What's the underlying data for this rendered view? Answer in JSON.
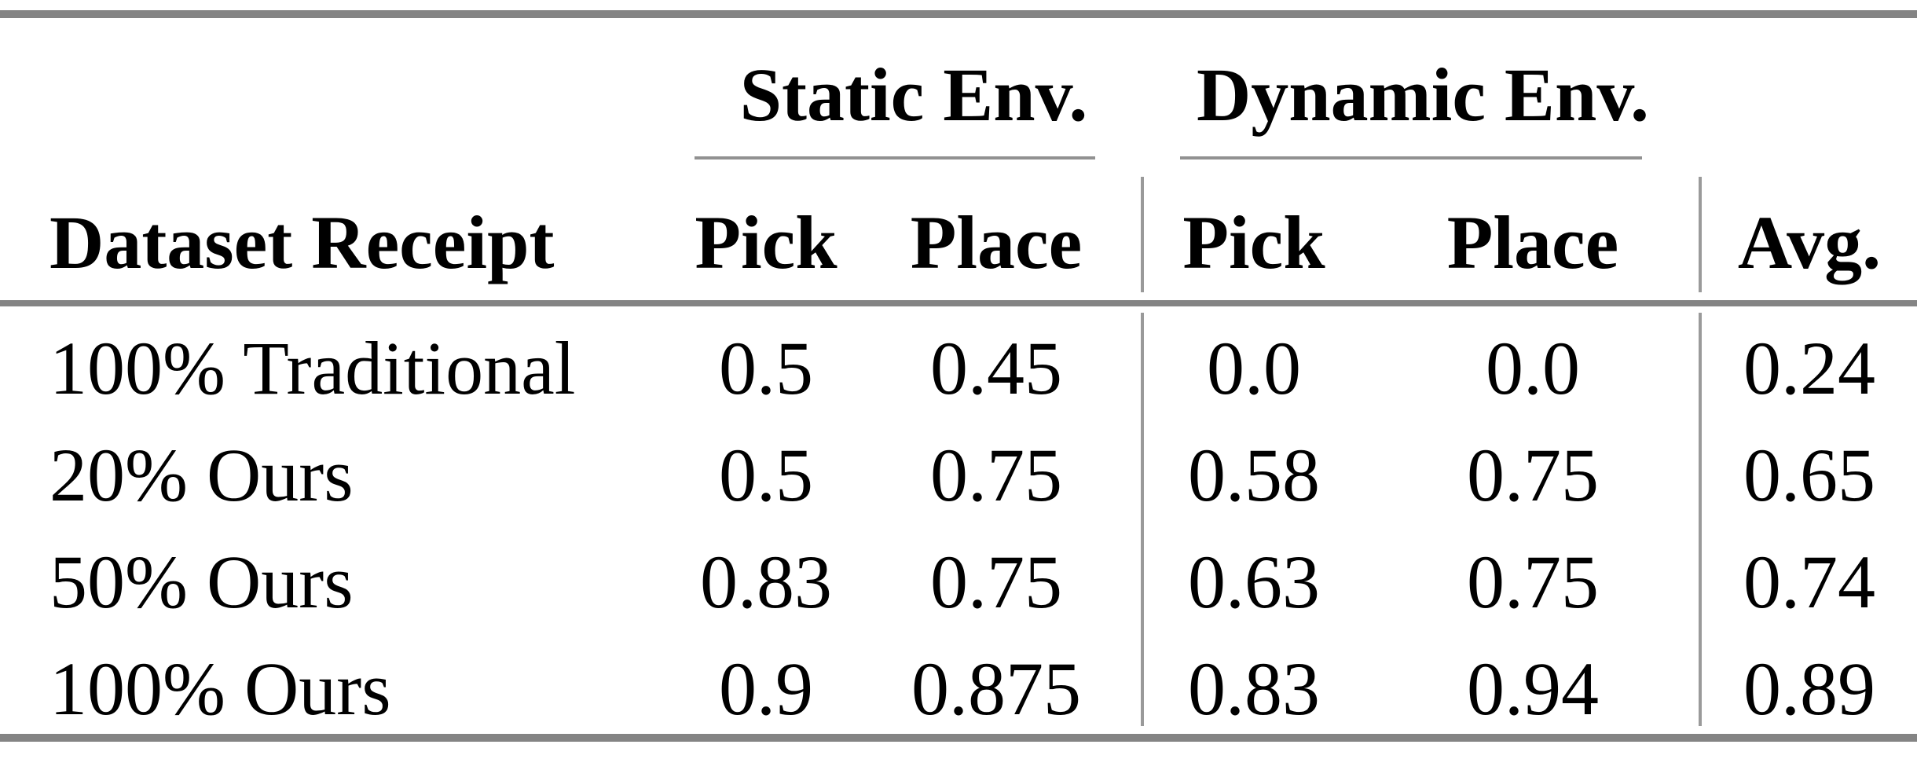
{
  "table": {
    "groups": {
      "static": "Static Env.",
      "dynamic": "Dynamic Env."
    },
    "headers": {
      "row_label": "Dataset Receipt",
      "static_pick": "Pick",
      "static_place": "Place",
      "dynamic_pick": "Pick",
      "dynamic_place": "Place",
      "avg": "Avg."
    },
    "rows": [
      {
        "label": "100% Traditional",
        "static_pick": "0.5",
        "static_place": "0.45",
        "dynamic_pick": "0.0",
        "dynamic_place": "0.0",
        "avg": "0.24"
      },
      {
        "label": "20% Ours",
        "static_pick": "0.5",
        "static_place": "0.75",
        "dynamic_pick": "0.58",
        "dynamic_place": "0.75",
        "avg": "0.65"
      },
      {
        "label": "50% Ours",
        "static_pick": "0.83",
        "static_place": "0.75",
        "dynamic_pick": "0.63",
        "dynamic_place": "0.75",
        "avg": "0.74"
      },
      {
        "label": "100% Ours",
        "static_pick": "0.9",
        "static_place": "0.875",
        "dynamic_pick": "0.83",
        "dynamic_place": "0.94",
        "avg": "0.89"
      }
    ]
  },
  "colors": {
    "thick_rule": "#848484",
    "thin_rule": "#919191",
    "column_divider": "#9a9a9a",
    "text": "#000000",
    "background": "#ffffff"
  },
  "chart_data": {
    "type": "table",
    "column_groups": [
      {
        "label": "Static Env.",
        "columns": [
          "Pick",
          "Place"
        ]
      },
      {
        "label": "Dynamic Env.",
        "columns": [
          "Pick",
          "Place"
        ]
      }
    ],
    "columns": [
      "Dataset Receipt",
      "Static Pick",
      "Static Place",
      "Dynamic Pick",
      "Dynamic Place",
      "Avg."
    ],
    "rows": [
      [
        "100% Traditional",
        0.5,
        0.45,
        0.0,
        0.0,
        0.24
      ],
      [
        "20% Ours",
        0.5,
        0.75,
        0.58,
        0.75,
        0.65
      ],
      [
        "50% Ours",
        0.83,
        0.75,
        0.63,
        0.75,
        0.74
      ],
      [
        "100% Ours",
        0.9,
        0.875,
        0.83,
        0.94,
        0.89
      ]
    ]
  }
}
